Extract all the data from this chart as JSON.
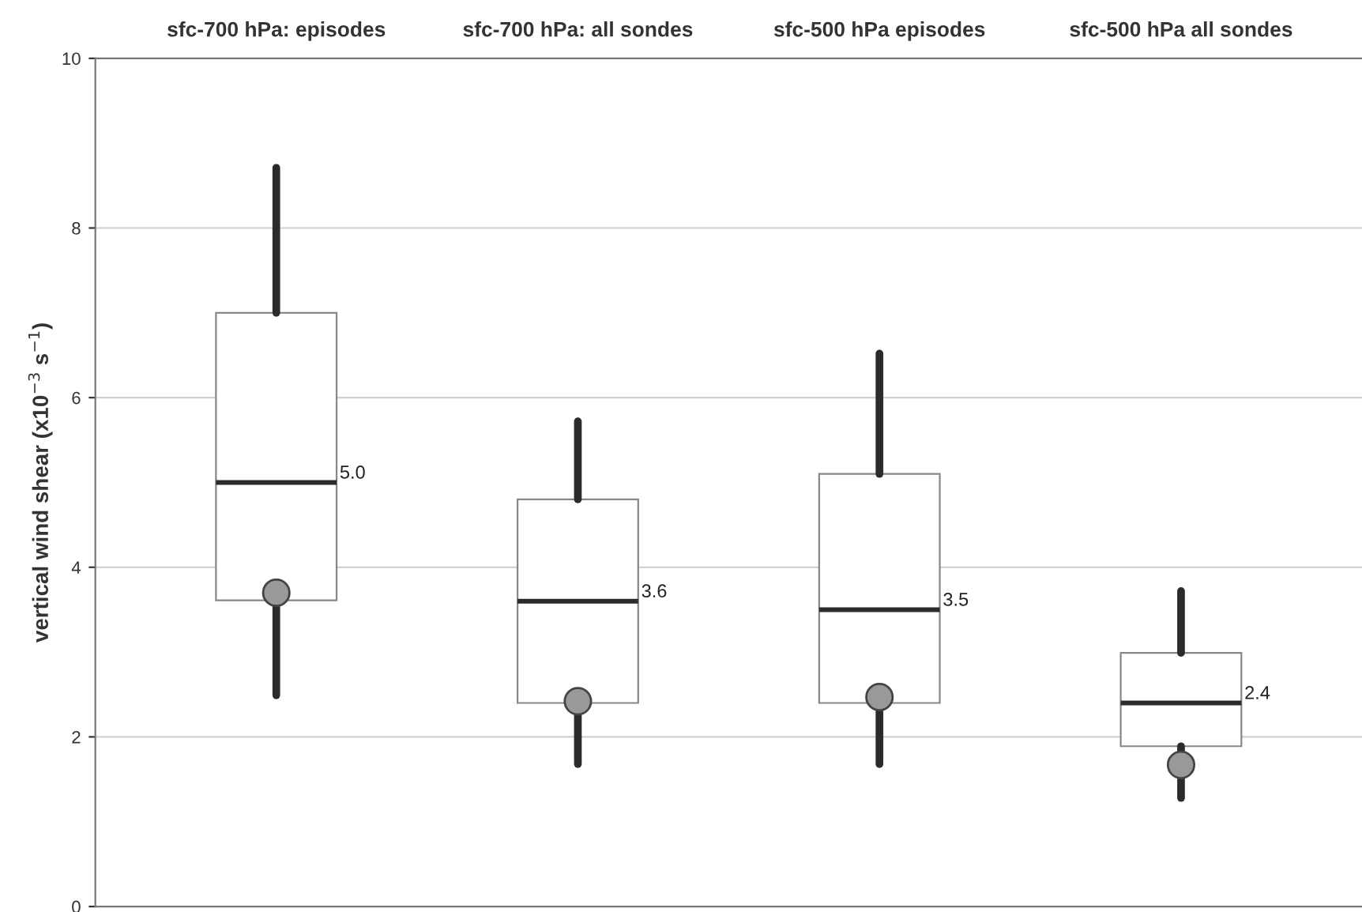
{
  "chart_data": {
    "type": "box",
    "categories": [
      "sfc-700 hPa: episodes",
      "sfc-700 hPa: all sondes",
      "sfc-500 hPa episodes",
      "sfc-500 hPa all sondes"
    ],
    "boxes": [
      {
        "low": 2.49,
        "q1": 3.61,
        "median": 5.0,
        "q3": 7.0,
        "high": 8.71,
        "mean": 3.7
      },
      {
        "low": 1.68,
        "q1": 2.4,
        "median": 3.6,
        "q3": 4.8,
        "high": 5.72,
        "mean": 2.42
      },
      {
        "low": 1.68,
        "q1": 2.4,
        "median": 3.5,
        "q3": 5.1,
        "high": 6.52,
        "mean": 2.47
      },
      {
        "low": 1.28,
        "q1": 1.89,
        "median": 2.4,
        "q3": 2.99,
        "high": 3.72,
        "mean": 1.67
      }
    ],
    "ylabel": "vertical wind shear (x10$^{−3}$ s$^{−1}$)",
    "ylim": [
      0,
      10
    ],
    "yticks": [
      0,
      2,
      4,
      6,
      8,
      10
    ],
    "grid": "y",
    "annotations": [
      "5.0",
      "3.6",
      "3.5",
      "2.4"
    ]
  }
}
